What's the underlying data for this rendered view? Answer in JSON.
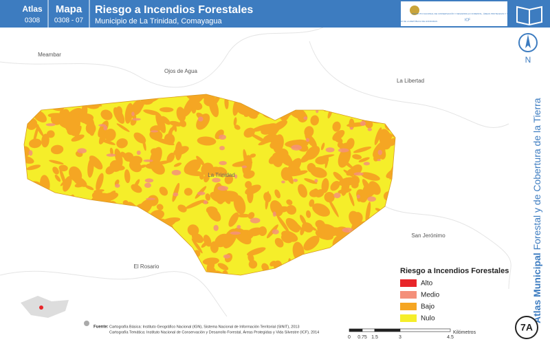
{
  "header": {
    "atlas_label": "Atlas",
    "atlas_code": "0308",
    "map_label": "Mapa",
    "map_code": "0308 - 07",
    "title": "Riesgo a Incendios Forestales",
    "subtitle": "Municipio de La Trinidad, Comayagua",
    "logo_gov": "GOBIERNO DE LA REPÚBLICA DE HONDURAS",
    "logo_icf": "INSTITUTO NACIONAL DE CONSERVACIÓN Y DESARROLLO FORESTAL, ÁREAS PROTEGIDAS Y VIDA SILVESTRE",
    "logo_icf_short": "ICF"
  },
  "north": "N",
  "places": [
    "Meambar",
    "Ojos de Agua",
    "La Libertad",
    "La Trinidad",
    "San Jerónimo",
    "El Rosario"
  ],
  "legend": {
    "title": "Riesgo a Incendios Forestales",
    "items": [
      {
        "label": "Alto",
        "color": "#e8262a"
      },
      {
        "label": "Medio",
        "color": "#f4907a"
      },
      {
        "label": "Bajo",
        "color": "#f5a623"
      },
      {
        "label": "Nulo",
        "color": "#f5ee2a"
      }
    ]
  },
  "sources": {
    "label": "Fuente:",
    "lines": [
      "Cartografía Básica: Instituto Geográfico Nacional (IGN), Sistema Nacional de Información Territorial (SINIT), 2013",
      "Cartografía Temática: Instituto Nacional de Conservación y Desarrollo Forestal, Áreas Protegidas y Vida Silvestre (ICF), 2014"
    ]
  },
  "scale": {
    "unit": "Kilómetros",
    "ticks": [
      "0",
      "0.75",
      "1.5",
      "3",
      "4.5"
    ]
  },
  "side": {
    "bold": "Atlas Municipal",
    "rest": "Forestal y de Cobertura de la Tierra",
    "page": "7A"
  }
}
